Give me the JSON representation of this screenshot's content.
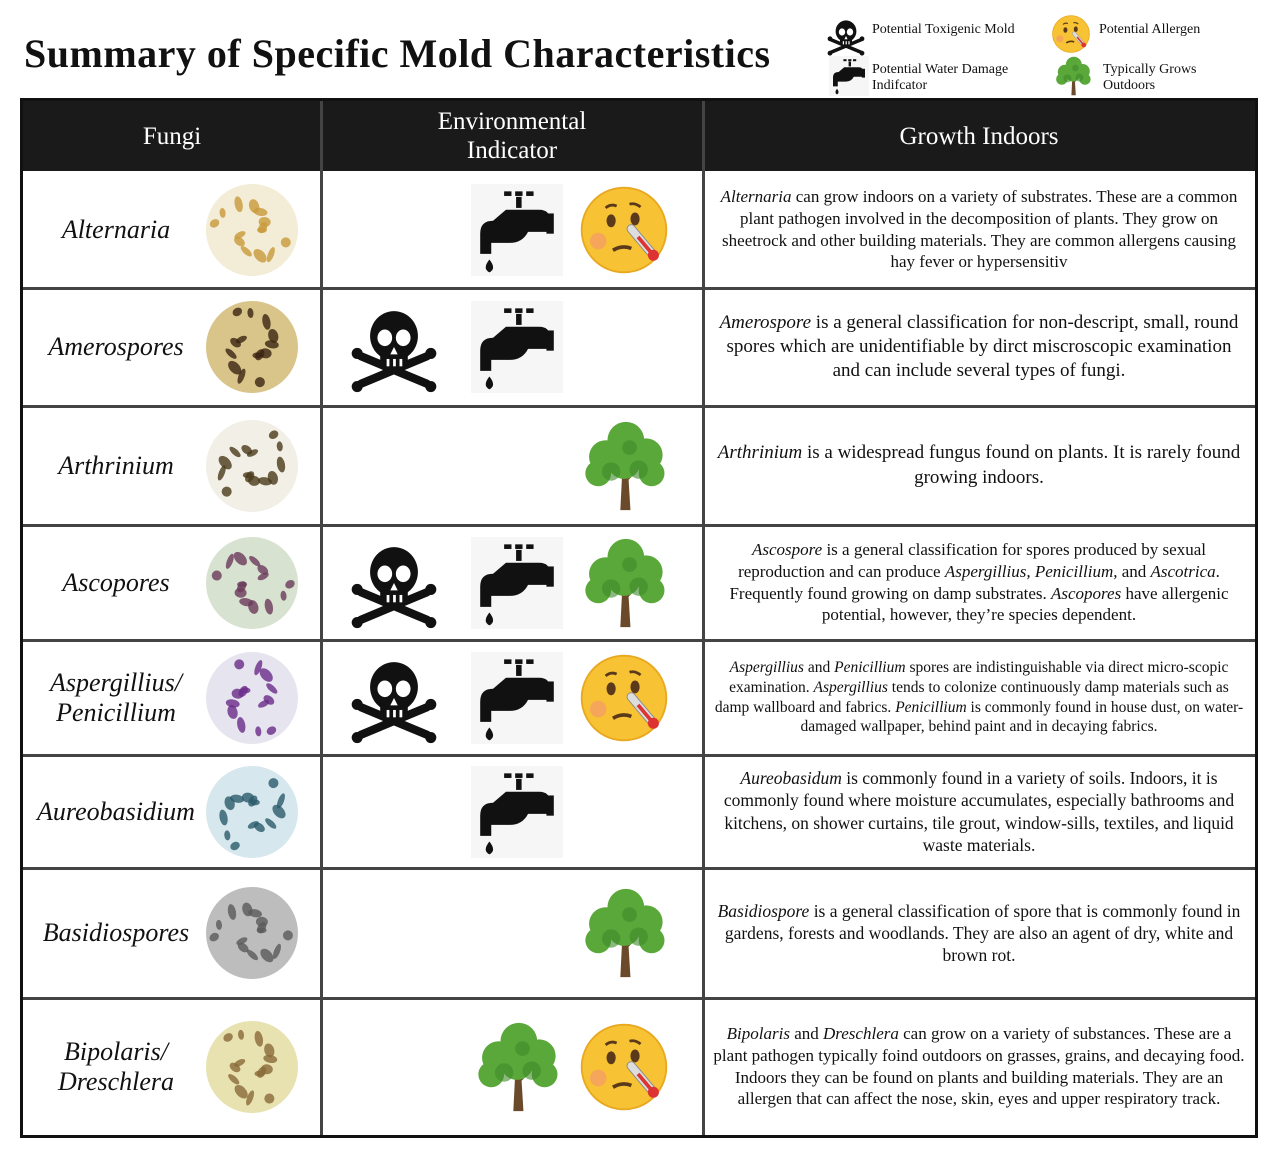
{
  "header": {
    "title": "Summary of Specific Mold Characteristics"
  },
  "legend": [
    {
      "key": "toxic",
      "label": "Potential Toxigenic Mold"
    },
    {
      "key": "allergen",
      "label": "Potential Allergen"
    },
    {
      "key": "water",
      "label": "Potential Water Damage Indifcator"
    },
    {
      "key": "outdoors",
      "label": "Typically Grows Outdoors"
    }
  ],
  "table": {
    "columns": [
      "Fungi",
      "Environmental Indicator",
      "Growth Indoors"
    ],
    "rows": [
      {
        "name": "Alternaria",
        "indicators": [
          "water",
          "allergen"
        ],
        "description": [
          {
            "text": "Alternaria",
            "italic": true
          },
          {
            "text": " can grow indoors on a variety of substrates. These are a common plant pathogen involved in the decomposition of plants. They grow on sheetrock and other building materials. They are common allergens causing hay fever or hypersensitiv",
            "italic": false
          }
        ]
      },
      {
        "name": "Amerospores",
        "indicators": [
          "toxic",
          "water"
        ],
        "description": [
          {
            "text": "Amerospore",
            "italic": true
          },
          {
            "text": " is a general classification for non-descript, small, round spores which are unidentifiable by dirct miscroscopic examination and can include several types of fungi.",
            "italic": false
          }
        ]
      },
      {
        "name": "Arthrinium",
        "indicators": [
          "outdoors"
        ],
        "description": [
          {
            "text": "Arthrinium",
            "italic": true
          },
          {
            "text": " is a widespread fungus found on plants. It is rarely found growing indoors.",
            "italic": false
          }
        ]
      },
      {
        "name": "Ascopores",
        "indicators": [
          "toxic",
          "water",
          "outdoors"
        ],
        "description": [
          {
            "text": "Ascospore",
            "italic": true
          },
          {
            "text": " is a general classification for spores produced by sexual reproduction and can produce ",
            "italic": false
          },
          {
            "text": "Aspergillius, Penicillium,",
            "italic": true
          },
          {
            "text": " and ",
            "italic": false
          },
          {
            "text": "Ascotrica",
            "italic": true
          },
          {
            "text": ". Frequently found growing on damp substrates. ",
            "italic": false
          },
          {
            "text": "Ascopores",
            "italic": true
          },
          {
            "text": " have allergenic potential, however, they’re species dependent.",
            "italic": false
          }
        ]
      },
      {
        "name": "Aspergillius/ Penicillium",
        "indicators": [
          "toxic",
          "water",
          "allergen"
        ],
        "description": [
          {
            "text": "Aspergillius",
            "italic": true
          },
          {
            "text": " and ",
            "italic": false
          },
          {
            "text": "Penicillium",
            "italic": true
          },
          {
            "text": " spores are indistinguishable via direct micro-scopic examination. ",
            "italic": false
          },
          {
            "text": "Aspergillius",
            "italic": true
          },
          {
            "text": " tends to colonize continuously damp materials such as damp wallboard and fabrics. ",
            "italic": false
          },
          {
            "text": "Penicillium",
            "italic": true
          },
          {
            "text": " is commonly found in house dust, on water-damaged wallpaper, behind paint and in decaying fabrics.",
            "italic": false
          }
        ]
      },
      {
        "name": "Aureobasidium",
        "indicators": [
          "water"
        ],
        "description": [
          {
            "text": "Aureobasidum",
            "italic": true
          },
          {
            "text": " is commonly found in a variety of soils. Indoors, it is commonly found where moisture accumulates, especially bathrooms and kitchens, on shower curtains, tile grout, window-sills, textiles, and liquid waste materials.",
            "italic": false
          }
        ]
      },
      {
        "name": "Basidiospores",
        "indicators": [
          "outdoors"
        ],
        "description": [
          {
            "text": "Basidiospore",
            "italic": true
          },
          {
            "text": " is a general classification of spore that is commonly found in gardens, forests and woodlands. They are also an agent of dry, white and brown rot.",
            "italic": false
          }
        ]
      },
      {
        "name": "Bipolaris/ Dreschlera",
        "indicators": [
          "outdoors",
          "allergen"
        ],
        "description": [
          {
            "text": "Bipolaris",
            "italic": true
          },
          {
            "text": " and ",
            "italic": false
          },
          {
            "text": "Dreschlera",
            "italic": true
          },
          {
            "text": " can grow on a variety of substances. These are a plant pathogen typically foind outdoors on grasses, grains, and decaying food. Indoors they can be found on plants and building materials. They are an allergen that can affect the nose, skin, eyes and upper respiratory track.",
            "italic": false
          }
        ]
      }
    ]
  }
}
